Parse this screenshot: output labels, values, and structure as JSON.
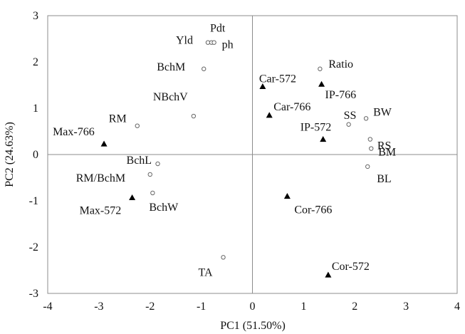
{
  "chart_data": {
    "type": "scatter",
    "title": "",
    "xlabel": "PC1 (51.50%)",
    "ylabel": "PC2 (24.63%)",
    "xlim": [
      -4,
      4
    ],
    "ylim": [
      -3,
      3
    ],
    "x_ticks": [
      "-4",
      "-3",
      "-2",
      "-1",
      "0",
      "1",
      "2",
      "3",
      "4"
    ],
    "y_ticks": [
      "-3",
      "-2",
      "-1",
      "0",
      "1",
      "2",
      "3"
    ],
    "grid": false,
    "zero_lines": true,
    "series": [
      {
        "marker": "triangle",
        "color": "#000000",
        "points": [
          {
            "label": "Car-572",
            "x": 0.2,
            "y": 1.47
          },
          {
            "label": "IP-766",
            "x": 1.35,
            "y": 1.52
          },
          {
            "label": "Car-766",
            "x": 0.33,
            "y": 0.85
          },
          {
            "label": "IP-572",
            "x": 1.38,
            "y": 0.33
          },
          {
            "label": "Max-766",
            "x": -2.9,
            "y": 0.23
          },
          {
            "label": "Max-572",
            "x": -2.35,
            "y": -0.93
          },
          {
            "label": "Cor-766",
            "x": 0.68,
            "y": -0.9
          },
          {
            "label": "Cor-572",
            "x": 1.48,
            "y": -2.6
          }
        ]
      },
      {
        "marker": "circle",
        "color": "#666666",
        "points": [
          {
            "label": "Yld",
            "x": -0.87,
            "y": 2.42
          },
          {
            "label": "Pdt",
            "x": -0.8,
            "y": 2.42
          },
          {
            "label": "ph",
            "x": -0.75,
            "y": 2.42
          },
          {
            "label": "BchM",
            "x": -0.95,
            "y": 1.85
          },
          {
            "label": "Ratio",
            "x": 1.32,
            "y": 1.85
          },
          {
            "label": "NBchV",
            "x": -1.15,
            "y": 0.83
          },
          {
            "label": "RM",
            "x": -2.25,
            "y": 0.62
          },
          {
            "label": "SS",
            "x": 1.88,
            "y": 0.65
          },
          {
            "label": "BW",
            "x": 2.22,
            "y": 0.78
          },
          {
            "label": "RS",
            "x": 2.3,
            "y": 0.33
          },
          {
            "label": "BM",
            "x": 2.32,
            "y": 0.13
          },
          {
            "label": "BchL",
            "x": -1.85,
            "y": -0.2
          },
          {
            "label": "RM/BchM",
            "x": -2.0,
            "y": -0.43
          },
          {
            "label": "BchW",
            "x": -1.95,
            "y": -0.83
          },
          {
            "label": "BL",
            "x": 2.25,
            "y": -0.26
          },
          {
            "label": "TA",
            "x": -0.57,
            "y": -2.22
          }
        ]
      }
    ]
  }
}
